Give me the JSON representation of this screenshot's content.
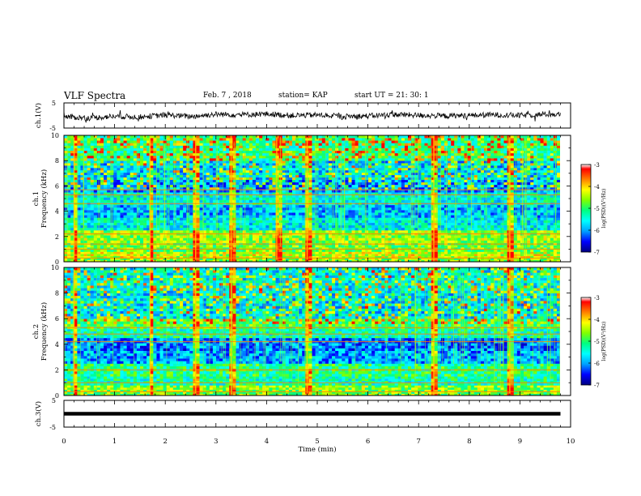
{
  "header": {
    "title": "VLF Spectra",
    "date": "Feb. 7 , 2018",
    "station": "station= KAP",
    "start_ut": "start  UT =   21: 30: 1"
  },
  "colors": {
    "colormap": [
      "#000080",
      "#0000ff",
      "#00a0ff",
      "#00ffff",
      "#00ff80",
      "#80ff00",
      "#ffff00",
      "#ff8000",
      "#ff0000",
      "#ffffff"
    ],
    "waveform": "#000000"
  },
  "chart_data": [
    {
      "type": "line",
      "panel": "ch1-waveform",
      "ylabel": "ch.1(V)",
      "ylim": [
        -5,
        5
      ],
      "yticks": [
        "5",
        "-5"
      ],
      "xlim": [
        0,
        10
      ],
      "trace_ranges_volts": [
        [
          0,
          -0.5
        ],
        [
          0.5,
          -1.0
        ],
        [
          1,
          -0.3
        ],
        [
          1.5,
          -0.6
        ],
        [
          2,
          0.2
        ],
        [
          2.5,
          -0.4
        ],
        [
          3,
          0.5
        ],
        [
          3.5,
          0.3
        ],
        [
          4,
          0.6
        ],
        [
          4.5,
          0.0
        ],
        [
          5,
          0.2
        ],
        [
          5.5,
          -0.4
        ],
        [
          6,
          -0.2
        ],
        [
          6.5,
          0.4
        ],
        [
          7,
          0.1
        ],
        [
          7.5,
          -0.2
        ],
        [
          8,
          0.0
        ],
        [
          8.5,
          0.3
        ],
        [
          9,
          0.0
        ],
        [
          9.5,
          0.5
        ],
        [
          9.8,
          0.4
        ]
      ]
    },
    {
      "type": "heatmap",
      "panel": "ch1-spectrogram",
      "ylabel": "ch.1 Frequency (kHz)",
      "ylim": [
        0,
        10
      ],
      "yticks": [
        "0",
        "2",
        "4",
        "6",
        "8",
        "10"
      ],
      "xlim": [
        0,
        10
      ],
      "colorbar": {
        "label": "log(PSD)(V²/Hz)",
        "range": [
          -7,
          -3
        ],
        "ticks": [
          "-3",
          "-4",
          "-5",
          "-6",
          "-7"
        ]
      },
      "band_levels": [
        [
          0,
          0.3,
          -4.5
        ],
        [
          0.3,
          0.8,
          -4.2
        ],
        [
          0.8,
          1.5,
          -4.6
        ],
        [
          1.5,
          2.5,
          -4.4
        ],
        [
          2.5,
          3.5,
          -5.5
        ],
        [
          3.5,
          4.5,
          -5.8
        ],
        [
          4.5,
          5.5,
          -5.4
        ],
        [
          5.5,
          6.5,
          -6.0
        ],
        [
          6.5,
          8,
          -5.7
        ],
        [
          8,
          10,
          -5.0
        ]
      ],
      "strong_lines_khz": [
        0.3,
        1.0,
        1.4,
        2.2,
        4.6,
        5.3,
        5.7
      ],
      "broadband_events_min": [
        0.2,
        1.7,
        2.6,
        3.3,
        4.2,
        4.8,
        7.3,
        8.8
      ]
    },
    {
      "type": "heatmap",
      "panel": "ch2-spectrogram",
      "ylabel": "ch.2 Frequency (kHz)",
      "ylim": [
        0,
        10
      ],
      "yticks": [
        "0",
        "2",
        "4",
        "6",
        "8",
        "10"
      ],
      "xlim": [
        0,
        10
      ],
      "colorbar": {
        "label": "log(PSD)(V²/Hz)",
        "range": [
          -7,
          -3
        ],
        "ticks": [
          "-3",
          "-4",
          "-5",
          "-6",
          "-7"
        ]
      },
      "band_levels": [
        [
          0,
          0.3,
          -4.6
        ],
        [
          0.3,
          0.8,
          -4.5
        ],
        [
          0.8,
          1.5,
          -5.2
        ],
        [
          1.5,
          2.5,
          -5.0
        ],
        [
          2.5,
          3.5,
          -5.9
        ],
        [
          3.5,
          4.5,
          -6.1
        ],
        [
          4.5,
          5.2,
          -5.2
        ],
        [
          5.2,
          6.0,
          -4.8
        ],
        [
          6.0,
          8,
          -5.6
        ],
        [
          8,
          10,
          -5.5
        ]
      ],
      "strong_lines_khz": [
        0.3,
        1.0,
        2.0,
        4.2,
        4.8,
        5.3
      ],
      "broadband_events_min": [
        0.2,
        1.7,
        2.6,
        3.3,
        4.8,
        7.3,
        8.8
      ]
    },
    {
      "type": "line",
      "panel": "ch3-waveform",
      "ylabel": "ch.3(V)",
      "ylim": [
        -5,
        5
      ],
      "yticks": [
        "5",
        "-5"
      ],
      "xlim": [
        0,
        10
      ],
      "values_volts": [
        [
          0,
          0
        ],
        [
          9.8,
          0
        ]
      ]
    }
  ],
  "xaxis": {
    "label": "Time  (min)",
    "ticks": [
      "0",
      "1",
      "2",
      "3",
      "4",
      "5",
      "6",
      "7",
      "8",
      "9",
      "10"
    ]
  }
}
